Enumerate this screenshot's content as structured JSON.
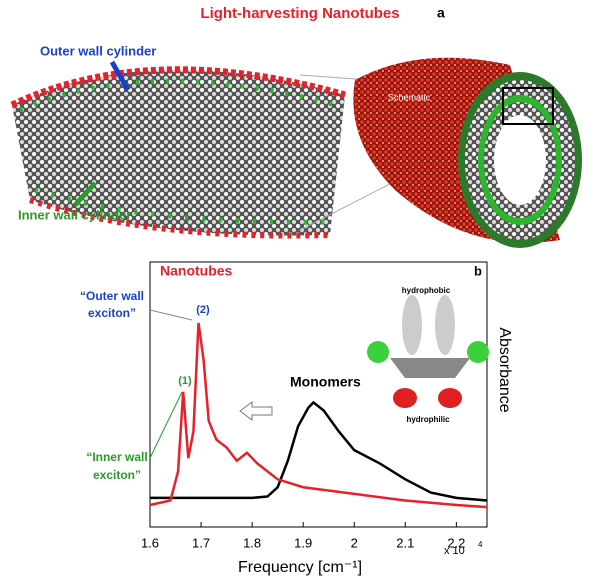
{
  "panel_a": {
    "title": "Light-harvesting Nanotubes",
    "label": "a",
    "outer_label": "Outer wall cylinder",
    "inner_label": "Inner wall cylinder",
    "schematic_label": "Schematic"
  },
  "chart_data": {
    "type": "line",
    "label": "b",
    "x_label": "Frequency [cm⁻¹]",
    "y_label": "Absorbance",
    "x_scale_text": "x 10",
    "x_scale_exponent": "4",
    "xlim": [
      1.6,
      2.26
    ],
    "ylim": [
      0,
      1
    ],
    "xticks": [
      1.6,
      1.7,
      1.8,
      1.9,
      2.0,
      2.1,
      2.2
    ],
    "series": [
      {
        "name": "Nanotubes",
        "color": "#e8202a",
        "x": [
          1.6,
          1.64,
          1.655,
          1.665,
          1.675,
          1.685,
          1.695,
          1.705,
          1.715,
          1.73,
          1.75,
          1.77,
          1.79,
          1.81,
          1.85,
          1.9,
          2.0,
          2.1,
          2.2,
          2.26
        ],
        "values": [
          0.083,
          0.1,
          0.21,
          0.51,
          0.26,
          0.36,
          0.77,
          0.63,
          0.4,
          0.33,
          0.3,
          0.25,
          0.28,
          0.24,
          0.18,
          0.15,
          0.125,
          0.1,
          0.083,
          0.075
        ]
      },
      {
        "name": "Monomers",
        "color": "#000000",
        "x": [
          1.6,
          1.7,
          1.8,
          1.83,
          1.85,
          1.87,
          1.89,
          1.91,
          1.92,
          1.94,
          1.97,
          2.0,
          2.05,
          2.1,
          2.15,
          2.2,
          2.26
        ],
        "values": [
          0.11,
          0.11,
          0.11,
          0.115,
          0.15,
          0.25,
          0.38,
          0.45,
          0.47,
          0.44,
          0.36,
          0.29,
          0.24,
          0.18,
          0.13,
          0.11,
          0.1
        ]
      }
    ],
    "annotations": {
      "outer_exciton": [
        "“Outer wall",
        "exciton”"
      ],
      "peak_2": "(2)",
      "peak_1": "(1)",
      "inner_exciton": [
        "“Inner wall",
        "exciton”"
      ],
      "hydrophobic": "hydrophobic",
      "hydrophilic": "hydrophilic"
    }
  }
}
